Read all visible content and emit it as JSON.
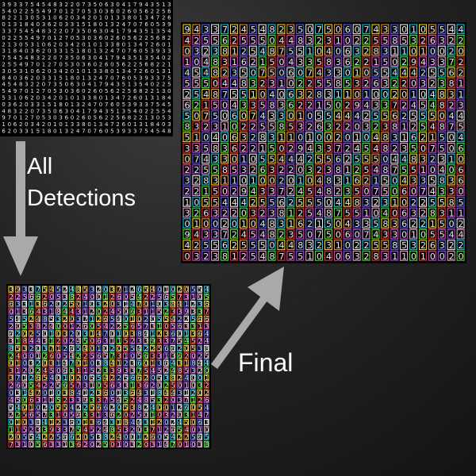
{
  "labels": {
    "all_detections_line1": "All",
    "all_detections_line2": "Detections",
    "final": "Final"
  },
  "colors": {
    "background": "#1e1e1e",
    "panel": "#000000",
    "digits": "#e8e8e8",
    "arrow": "#a9a9a9",
    "label_text": "#ffffff",
    "box_palette": [
      "#ffe600",
      "#ff3bd2",
      "#ffffff",
      "#39ff14",
      "#ff9a1f",
      "#b04cff",
      "#00d5ff",
      "#ff2e2e",
      "#4d6bff",
      "#ffa8e0"
    ]
  },
  "panels": {
    "input_digits": "3933754548322073506304179435135402255497012705303602605622568221305310620342010133801347260131840362033151801324707605",
    "final_detections": "943372454823507506074330105544425562555044832310225585326322032381254875510406328311010020104831621504335836221502",
    "all_detections": "3933754524853203712654010205542256620538240012605422565731056331362025010320314701038412360136431844312024506311523"
  }
}
